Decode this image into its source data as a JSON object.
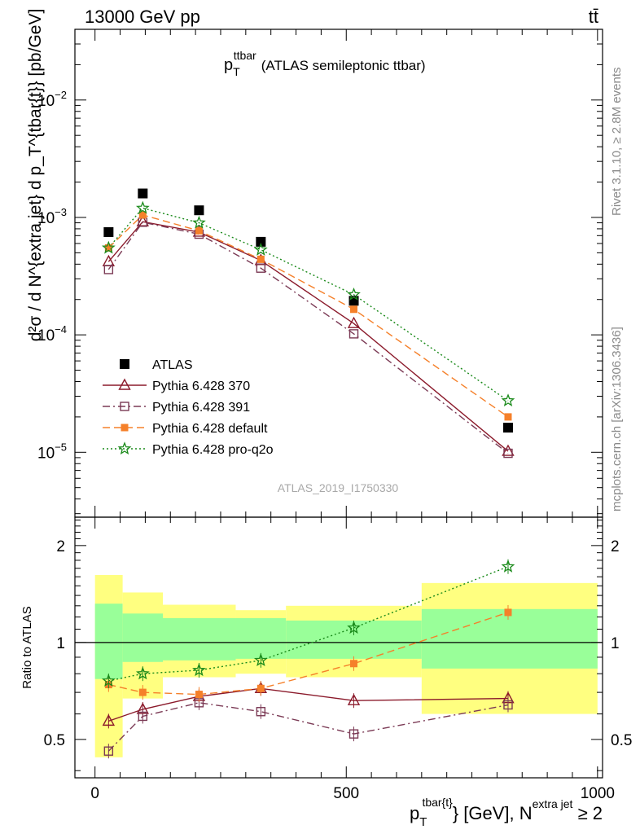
{
  "header": {
    "left": "13000 GeV pp",
    "right": "tt̄"
  },
  "side_labels": {
    "rivet": "Rivet 3.1.10, ≥ 2.8M events",
    "mcplots": "mcplots.cern.ch [arXiv:1306.3436]"
  },
  "watermark": "ATLAS_2019_I1750330",
  "chart_data": [
    {
      "type": "scatter",
      "panel": "main",
      "title_main": "p",
      "title_sub": "T",
      "title_sup": "ttbar",
      "title_rest": "(ATLAS semileptonic ttbar)",
      "ylabel": "d²σ / d N^{extra jet} d p_T^{tbar{t}} [pb/GeV]",
      "yscale": "log",
      "ylim": [
        2.8e-06,
        0.04
      ],
      "xlim": [
        -40,
        1010
      ],
      "yticks": [
        {
          "v": 1e-05,
          "m": "10",
          "e": "−5"
        },
        {
          "v": 0.0001,
          "m": "10",
          "e": "−4"
        },
        {
          "v": 0.001,
          "m": "10",
          "e": "−3"
        },
        {
          "v": 0.01,
          "m": "10",
          "e": "−2"
        }
      ],
      "legend_position": "bottom-left",
      "series": [
        {
          "name": "ATLAS",
          "color": "#000000",
          "marker": "filled-square",
          "line": "none",
          "x": [
            27,
            95,
            207,
            330,
            515,
            822
          ],
          "y": [
            0.00075,
            0.0016,
            0.00115,
            0.00062,
            0.000195,
            1.62e-05
          ]
        },
        {
          "name": "Pythia 6.428 370",
          "color": "#8b1a2b",
          "marker": "open-triangle",
          "line": "solid",
          "x": [
            27,
            95,
            207,
            330,
            515,
            822
          ],
          "y": [
            0.00042,
            0.00092,
            0.00075,
            0.00043,
            0.000125,
            1.02e-05
          ]
        },
        {
          "name": "Pythia 6.428 391",
          "color": "#7b3a55",
          "marker": "open-square",
          "line": "dashdot",
          "x": [
            27,
            95,
            207,
            330,
            515,
            822
          ],
          "y": [
            0.00036,
            0.00091,
            0.00072,
            0.00037,
            0.000102,
            9.8e-06
          ]
        },
        {
          "name": "Pythia 6.428 default",
          "color": "#f5802a",
          "marker": "filled-square",
          "line": "dashed",
          "x": [
            27,
            95,
            207,
            330,
            515,
            822
          ],
          "y": [
            0.00055,
            0.00105,
            0.00077,
            0.00044,
            0.000165,
            2e-05
          ]
        },
        {
          "name": "Pythia 6.428 pro-q2o",
          "color": "#1a8a1a",
          "marker": "open-star",
          "line": "dotted",
          "x": [
            27,
            95,
            207,
            330,
            515,
            822
          ],
          "y": [
            0.00055,
            0.0012,
            0.0009,
            0.00053,
            0.00022,
            2.75e-05
          ]
        }
      ]
    },
    {
      "type": "scatter",
      "panel": "ratio",
      "ylabel": "Ratio to ATLAS",
      "xlabel_main": "p",
      "xlabel_sub": "T",
      "xlabel_sup": "tbar{t}",
      "xlabel_rest": "} [GeV], N",
      "xlabel_sup2": "extra jet",
      "xlabel_tail": " ≥ 2",
      "yscale": "log",
      "ylim": [
        0.38,
        2.45
      ],
      "xlim": [
        -40,
        1010
      ],
      "xticks": [
        0,
        500,
        1000
      ],
      "yticks": [
        0.5,
        1,
        2
      ],
      "bands": {
        "x_edges": [
          0,
          55,
          135,
          280,
          380,
          650,
          1000
        ],
        "green_lo": [
          0.77,
          0.87,
          0.88,
          0.89,
          0.89,
          0.83
        ],
        "green_hi": [
          1.32,
          1.23,
          1.19,
          1.19,
          1.17,
          1.27
        ],
        "yellow_lo": [
          0.44,
          0.67,
          0.78,
          0.8,
          0.78,
          0.6
        ],
        "yellow_hi": [
          1.62,
          1.43,
          1.31,
          1.26,
          1.3,
          1.53
        ]
      },
      "series": [
        {
          "name": "Pythia 6.428 370",
          "x": [
            27,
            95,
            207,
            330,
            515,
            822
          ],
          "y": [
            0.57,
            0.62,
            0.68,
            0.72,
            0.66,
            0.67
          ]
        },
        {
          "name": "Pythia 6.428 391",
          "x": [
            27,
            95,
            207,
            330,
            515,
            822
          ],
          "y": [
            0.46,
            0.59,
            0.65,
            0.61,
            0.52,
            0.64
          ]
        },
        {
          "name": "Pythia 6.428 default",
          "x": [
            27,
            95,
            207,
            330,
            515,
            822
          ],
          "y": [
            0.74,
            0.7,
            0.69,
            0.72,
            0.86,
            1.24
          ]
        },
        {
          "name": "Pythia 6.428 pro-q2o",
          "x": [
            27,
            95,
            207,
            330,
            515,
            822
          ],
          "y": [
            0.76,
            0.8,
            0.82,
            0.88,
            1.11,
            1.72
          ]
        }
      ]
    }
  ]
}
